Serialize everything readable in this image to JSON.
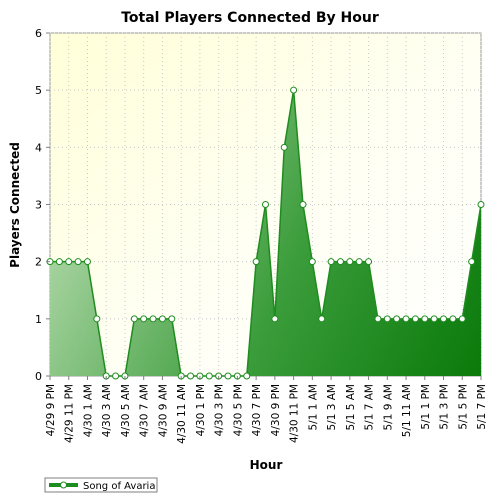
{
  "chart_data": {
    "type": "area",
    "title": "Total Players Connected By Hour",
    "xlabel": "Hour",
    "ylabel": "Players Connected",
    "ylim": [
      0,
      6
    ],
    "yticks": [
      0,
      1,
      2,
      3,
      4,
      5,
      6
    ],
    "grid": true,
    "legend_position": "bottom-left",
    "x": [
      "4/29 9 PM",
      "4/29 10 PM",
      "4/29 11 PM",
      "4/30 12 AM",
      "4/30 1 AM",
      "4/30 2 AM",
      "4/30 3 AM",
      "4/30 4 AM",
      "4/30 5 AM",
      "4/30 6 AM",
      "4/30 7 AM",
      "4/30 8 AM",
      "4/30 9 AM",
      "4/30 10 AM",
      "4/30 11 AM",
      "4/30 12 PM",
      "4/30 1 PM",
      "4/30 2 PM",
      "4/30 3 PM",
      "4/30 4 PM",
      "4/30 5 PM",
      "4/30 6 PM",
      "4/30 7 PM",
      "4/30 8 PM",
      "4/30 9 PM",
      "4/30 10 PM",
      "4/30 11 PM",
      "5/1 12 AM",
      "5/1 1 AM",
      "5/1 2 AM",
      "5/1 3 AM",
      "5/1 4 AM",
      "5/1 5 AM",
      "5/1 6 AM",
      "5/1 7 AM",
      "5/1 8 AM",
      "5/1 9 AM",
      "5/1 10 AM",
      "5/1 11 AM",
      "5/1 12 PM",
      "5/1 1 PM",
      "5/1 2 PM",
      "5/1 3 PM",
      "5/1 4 PM",
      "5/1 5 PM",
      "5/1 6 PM",
      "5/1 7 PM"
    ],
    "x_tick_labels": [
      "4/29 9 PM",
      "4/29 11 PM",
      "4/30 1 AM",
      "4/30 3 AM",
      "4/30 5 AM",
      "4/30 7 AM",
      "4/30 9 AM",
      "4/30 11 AM",
      "4/30 1 PM",
      "4/30 3 PM",
      "4/30 5 PM",
      "4/30 7 PM",
      "4/30 9 PM",
      "4/30 11 PM",
      "5/1 1 AM",
      "5/1 3 AM",
      "5/1 5 AM",
      "5/1 7 AM",
      "5/1 9 AM",
      "5/1 11 AM",
      "5/1 1 PM",
      "5/1 3 PM",
      "5/1 5 PM",
      "5/1 7 PM"
    ],
    "series": [
      {
        "name": "Song of Avaria",
        "color": "#1e8c1e",
        "values": [
          2,
          2,
          2,
          2,
          2,
          1,
          0,
          0,
          0,
          1,
          1,
          1,
          1,
          1,
          0,
          0,
          0,
          0,
          0,
          0,
          0,
          0,
          2,
          3,
          1,
          4,
          5,
          3,
          2,
          1,
          2,
          2,
          2,
          2,
          2,
          1,
          1,
          1,
          1,
          1,
          1,
          1,
          1,
          1,
          1,
          2,
          3
        ]
      }
    ]
  }
}
